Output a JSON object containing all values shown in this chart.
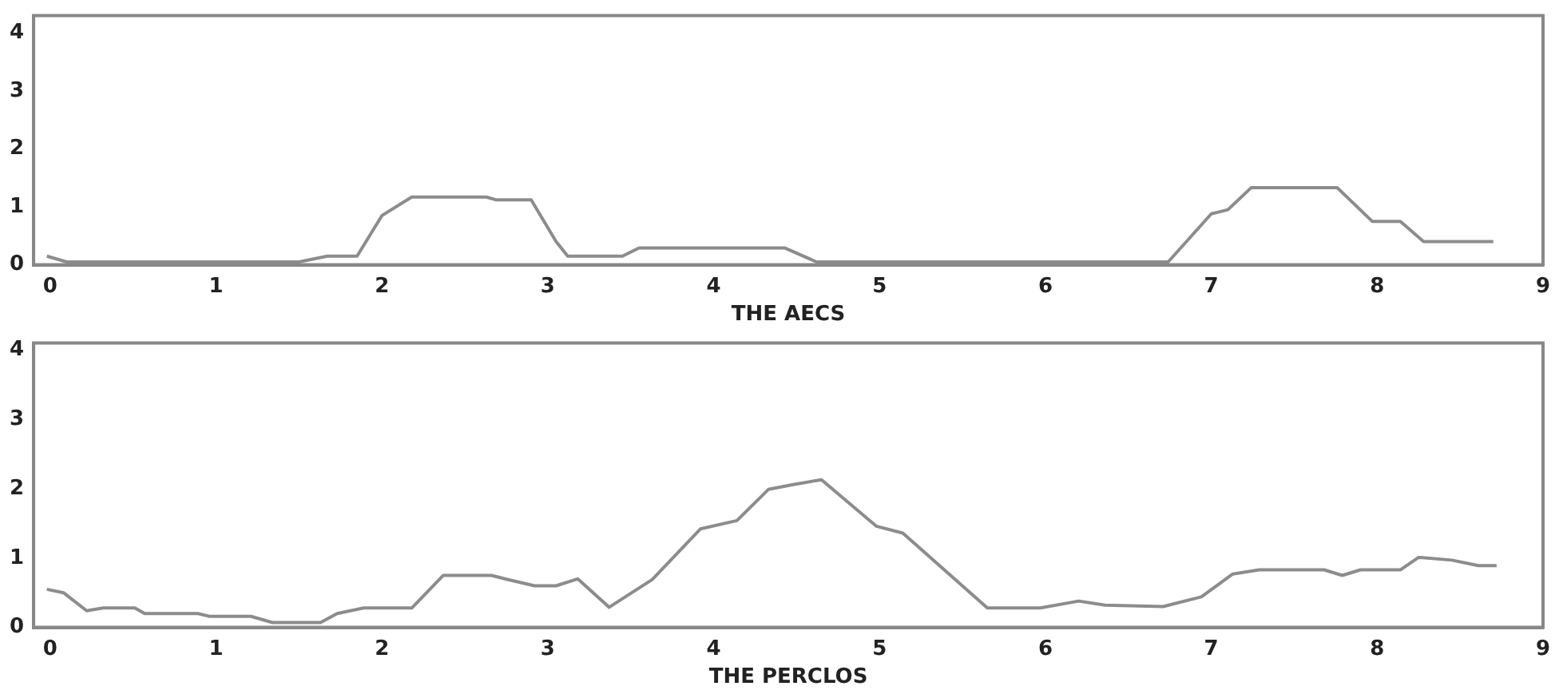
{
  "chart_data": [
    {
      "type": "line",
      "xlabel": "THE AECS",
      "xlim": [
        -0.1,
        9
      ],
      "ylim": [
        0,
        4.3
      ],
      "xticks": [
        0,
        1,
        2,
        3,
        4,
        5,
        6,
        7,
        8,
        9
      ],
      "yticks": [
        0,
        1,
        2,
        3,
        4
      ],
      "series": [
        {
          "color": "#8c8c8c",
          "x": [
            -0.02,
            0.1,
            1.5,
            1.67,
            1.85,
            2.0,
            2.18,
            2.63,
            2.69,
            2.9,
            3.05,
            3.12,
            3.45,
            3.55,
            4.43,
            4.62,
            6.74,
            7.0,
            7.1,
            7.24,
            7.76,
            7.97,
            8.14,
            8.28,
            8.7
          ],
          "values": [
            0.15,
            0.05,
            0.05,
            0.15,
            0.15,
            0.85,
            1.17,
            1.17,
            1.12,
            1.12,
            0.4,
            0.15,
            0.15,
            0.29,
            0.29,
            0.05,
            0.05,
            0.88,
            0.95,
            1.33,
            1.33,
            0.75,
            0.75,
            0.4,
            0.4
          ]
        }
      ]
    },
    {
      "type": "line",
      "xlabel": "THE PERCLOS",
      "xlim": [
        -0.1,
        9
      ],
      "ylim": [
        0,
        4.1
      ],
      "xticks": [
        0,
        1,
        2,
        3,
        4,
        5,
        6,
        7,
        8,
        9
      ],
      "yticks": [
        0,
        1,
        2,
        3,
        4
      ],
      "series": [
        {
          "color": "#8c8c8c",
          "x": [
            -0.02,
            0.08,
            0.22,
            0.32,
            0.51,
            0.57,
            0.89,
            0.96,
            1.21,
            1.34,
            1.63,
            1.73,
            1.89,
            2.18,
            2.37,
            2.66,
            2.76,
            2.92,
            3.05,
            3.18,
            3.37,
            3.63,
            3.92,
            4.14,
            4.33,
            4.48,
            4.65,
            4.98,
            5.14,
            5.65,
            5.97,
            6.2,
            6.36,
            6.71,
            6.94,
            7.13,
            7.29,
            7.68,
            7.79,
            7.9,
            8.14,
            8.25,
            8.45,
            8.61,
            8.72
          ],
          "values": [
            0.55,
            0.5,
            0.24,
            0.28,
            0.28,
            0.2,
            0.2,
            0.16,
            0.16,
            0.07,
            0.07,
            0.2,
            0.28,
            0.28,
            0.75,
            0.75,
            0.69,
            0.6,
            0.6,
            0.7,
            0.29,
            0.69,
            1.42,
            1.54,
            1.99,
            2.06,
            2.13,
            1.46,
            1.36,
            0.28,
            0.28,
            0.38,
            0.32,
            0.3,
            0.44,
            0.77,
            0.83,
            0.83,
            0.75,
            0.83,
            0.83,
            1.01,
            0.97,
            0.89,
            0.89
          ]
        }
      ]
    }
  ]
}
